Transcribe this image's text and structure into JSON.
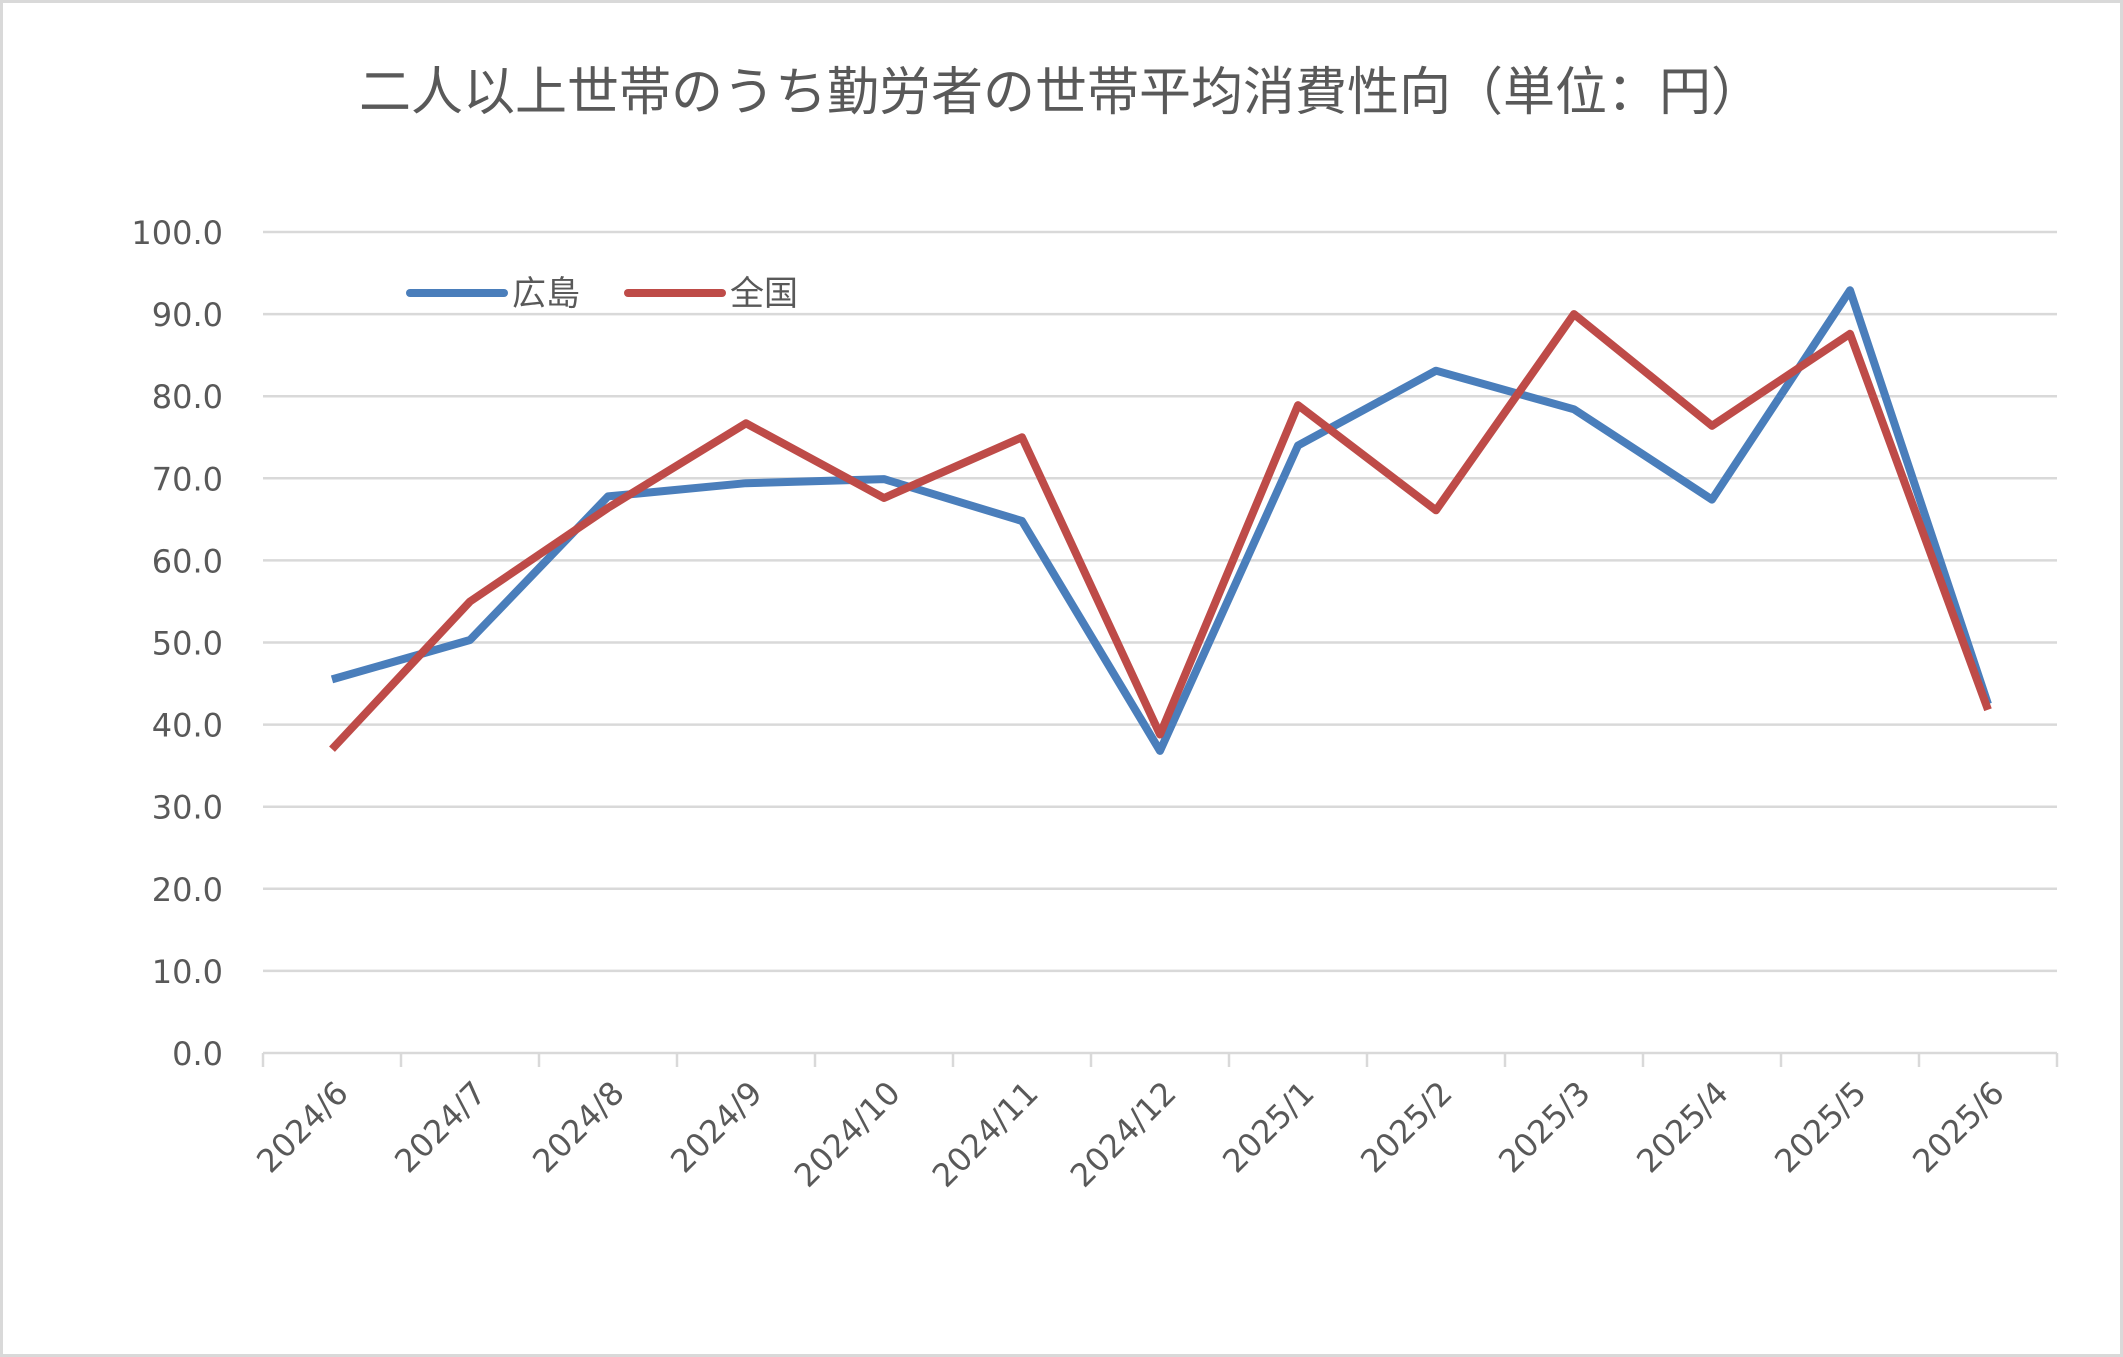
{
  "chart_data": {
    "type": "line",
    "title": "二人以上世帯のうち勤労者の世帯平均消費性向（単位：円）",
    "categories": [
      "2024/6",
      "2024/7",
      "2024/8",
      "2024/9",
      "2024/10",
      "2024/11",
      "2024/12",
      "2025/1",
      "2025/2",
      "2025/3",
      "2025/4",
      "2025/5",
      "2025/6"
    ],
    "series": [
      {
        "name": "広島",
        "color": "#4a7ebb",
        "values": [
          45.5,
          50.3,
          67.8,
          69.4,
          69.9,
          64.8,
          36.8,
          74.0,
          83.1,
          78.4,
          67.4,
          92.9,
          42.5
        ]
      },
      {
        "name": "全国",
        "color": "#be4b48",
        "values": [
          37.0,
          55.0,
          66.4,
          76.7,
          67.6,
          75.0,
          38.8,
          78.9,
          66.1,
          90.0,
          76.4,
          87.6,
          41.8
        ]
      }
    ],
    "y_ticks": [
      "0.0",
      "10.0",
      "20.0",
      "30.0",
      "40.0",
      "50.0",
      "60.0",
      "70.0",
      "80.0",
      "90.0",
      "100.0"
    ],
    "ylim": [
      0,
      100
    ],
    "grid": true,
    "legend_position": "top-left",
    "frame_color": "#d9d9d9",
    "gridline_color": "#d9d9d9",
    "text_color": "#595959"
  }
}
